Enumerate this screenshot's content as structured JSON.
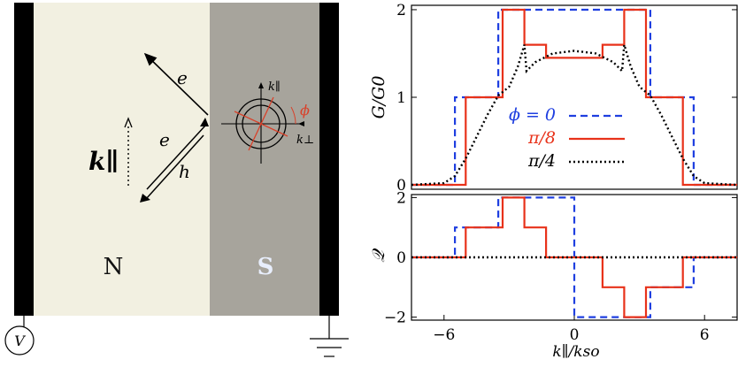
{
  "schematic": {
    "region_n": "N",
    "region_s": "S",
    "label_e_top": "e",
    "label_e_bottom": "e",
    "label_h": "h",
    "label_k_parallel": "k∥",
    "label_phi": "ϕ",
    "label_inset_kpar": "k∥",
    "label_inset_kperp": "k⊥",
    "voltage_label": "V",
    "colors": {
      "normal": "#f2f0e1",
      "super": "#a7a49c",
      "leads": "#000000",
      "accent": "#d9412a"
    }
  },
  "chart_data": [
    {
      "type": "line",
      "ylabel": "G/G0",
      "xlim": [
        -7.5,
        7.5
      ],
      "ylim": [
        -0.05,
        2.05
      ],
      "yticks": [
        "0",
        "1",
        "2"
      ],
      "legend_position": "center",
      "series": [
        {
          "name": "ϕ = 0",
          "color": "#1f3fe0",
          "dash": "dashed",
          "points": [
            [
              -7.5,
              0
            ],
            [
              -5.5,
              0
            ],
            [
              -5.5,
              1
            ],
            [
              -3.5,
              1
            ],
            [
              -3.5,
              2
            ],
            [
              3.5,
              2
            ],
            [
              3.5,
              1
            ],
            [
              5.5,
              1
            ],
            [
              5.5,
              0
            ],
            [
              7.5,
              0
            ]
          ]
        },
        {
          "name": "π/8",
          "color": "#e8321a",
          "dash": "solid",
          "points": [
            [
              -7.5,
              0
            ],
            [
              -5.0,
              0
            ],
            [
              -5.0,
              1
            ],
            [
              -3.3,
              1
            ],
            [
              -3.3,
              2
            ],
            [
              -2.3,
              2
            ],
            [
              -2.3,
              1.6
            ],
            [
              -1.3,
              1.6
            ],
            [
              -1.3,
              1.45
            ],
            [
              0,
              1.45
            ],
            [
              1.3,
              1.45
            ],
            [
              1.3,
              1.6
            ],
            [
              2.3,
              1.6
            ],
            [
              2.3,
              2
            ],
            [
              3.3,
              2
            ],
            [
              3.3,
              1
            ],
            [
              5.0,
              1
            ],
            [
              5.0,
              0
            ],
            [
              7.5,
              0
            ]
          ]
        },
        {
          "name": "π/4",
          "color": "#000000",
          "dash": "dotted",
          "points": [
            [
              -7.5,
              0
            ],
            [
              -6,
              0.02
            ],
            [
              -5.5,
              0.1
            ],
            [
              -5,
              0.3
            ],
            [
              -4.5,
              0.55
            ],
            [
              -4,
              0.8
            ],
            [
              -3.5,
              1.02
            ],
            [
              -3,
              1.12
            ],
            [
              -2.6,
              1.35
            ],
            [
              -2.3,
              1.6
            ],
            [
              -2.2,
              1.3
            ],
            [
              -1.8,
              1.4
            ],
            [
              -1,
              1.5
            ],
            [
              0,
              1.53
            ],
            [
              1,
              1.5
            ],
            [
              1.8,
              1.4
            ],
            [
              2.2,
              1.3
            ],
            [
              2.3,
              1.6
            ],
            [
              2.6,
              1.35
            ],
            [
              3,
              1.12
            ],
            [
              3.5,
              1.02
            ],
            [
              4,
              0.8
            ],
            [
              4.5,
              0.55
            ],
            [
              5,
              0.3
            ],
            [
              5.5,
              0.1
            ],
            [
              6,
              0.02
            ],
            [
              7.5,
              0
            ]
          ]
        }
      ]
    },
    {
      "type": "line",
      "ylabel": "𝒬",
      "xlabel": "k∥/kso",
      "xlim": [
        -7.5,
        7.5
      ],
      "ylim": [
        -2.1,
        2.1
      ],
      "xticks": [
        "−6",
        "0",
        "6"
      ],
      "yticks": [
        "−2",
        "0",
        "2"
      ],
      "series": [
        {
          "color": "#1f3fe0",
          "dash": "dashed",
          "points": [
            [
              -7.5,
              0
            ],
            [
              -5.5,
              0
            ],
            [
              -5.5,
              1
            ],
            [
              -3.5,
              1
            ],
            [
              -3.5,
              2
            ],
            [
              0,
              2
            ],
            [
              0,
              -2
            ],
            [
              3.5,
              -2
            ],
            [
              3.5,
              -1
            ],
            [
              5.5,
              -1
            ],
            [
              5.5,
              0
            ],
            [
              7.5,
              0
            ]
          ]
        },
        {
          "color": "#e8321a",
          "dash": "solid",
          "points": [
            [
              -7.5,
              0
            ],
            [
              -5.0,
              0
            ],
            [
              -5.0,
              1
            ],
            [
              -3.3,
              1
            ],
            [
              -3.3,
              2
            ],
            [
              -2.3,
              2
            ],
            [
              -2.3,
              1
            ],
            [
              -1.3,
              1
            ],
            [
              -1.3,
              0
            ],
            [
              1.3,
              0
            ],
            [
              1.3,
              -1
            ],
            [
              2.3,
              -1
            ],
            [
              2.3,
              -2
            ],
            [
              3.3,
              -2
            ],
            [
              3.3,
              -1
            ],
            [
              5.0,
              -1
            ],
            [
              5.0,
              0
            ],
            [
              7.5,
              0
            ]
          ]
        },
        {
          "color": "#000000",
          "dash": "dotted",
          "points": [
            [
              -7.5,
              0
            ],
            [
              7.5,
              0
            ]
          ]
        }
      ]
    }
  ]
}
